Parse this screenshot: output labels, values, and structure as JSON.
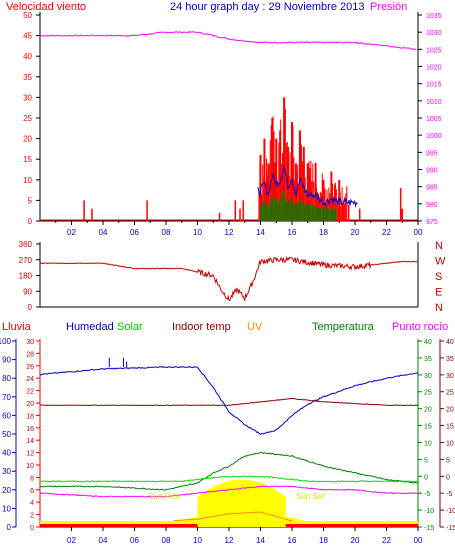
{
  "header": {
    "left_label": "Velocidad viento",
    "title": "24 hour graph day : 29 Noviembre 2013",
    "right_label": "Presión"
  },
  "bottom_header": {
    "rain": "Lluvia",
    "humidity": "Humedad",
    "solar": "Solar",
    "indoor": "Indoor temp",
    "uv": "UV",
    "temp": "Temperatura",
    "dew": "Punto rocío"
  },
  "annotations": {
    "sunrise": "Sun Rise",
    "sunset": "Sun Set"
  },
  "colors": {
    "wind": "#ff0000",
    "gust": "#0000cc",
    "avg": "#008000",
    "pressure": "#ff00ff",
    "direction": "#cc0000",
    "humidity": "#0000cc",
    "solar": "#00dd00",
    "indoor": "#880000",
    "uv": "#ff8800",
    "temperature": "#008000",
    "dew": "#ff00ff",
    "rain": "#ff0000",
    "sun": "#ffff00"
  },
  "chart_data": [
    {
      "type": "bar",
      "panel": "wind-pressure",
      "x_ticks": [
        "02",
        "04",
        "06",
        "08",
        "10",
        "12",
        "14",
        "16",
        "18",
        "20",
        "22",
        "00"
      ],
      "ylabel": "Velocidad viento",
      "y_ticks": [
        0,
        5,
        10,
        15,
        20,
        25,
        30,
        35,
        40,
        45,
        50
      ],
      "ylim": [
        0,
        50
      ],
      "y2label": "Presión",
      "y2_ticks": [
        975,
        980,
        985,
        990,
        995,
        1000,
        1005,
        1010,
        1015,
        1020,
        1025,
        1030,
        1035
      ],
      "y2lim": [
        975,
        1035
      ],
      "series": [
        {
          "name": "Velocidad viento",
          "x": [
            14.0,
            14.25,
            14.5,
            14.75,
            15.0,
            15.25,
            15.5,
            15.75,
            16.0,
            16.25,
            16.5,
            16.75,
            17.0,
            17.5,
            18.0,
            18.5,
            19.0
          ],
          "values": [
            16,
            20,
            14,
            25,
            20,
            22,
            30,
            18,
            24,
            14,
            22,
            18,
            14,
            14,
            10,
            12,
            10
          ]
        },
        {
          "name": "Presión",
          "x": [
            0,
            2,
            4,
            6,
            8,
            10,
            12,
            14,
            16,
            18,
            20,
            22,
            24
          ],
          "values": [
            1029,
            1029,
            1029,
            1029,
            1030,
            1030,
            1028,
            1027,
            1027,
            1027,
            1027,
            1026,
            1025
          ]
        }
      ],
      "grid": false,
      "legend": "top"
    },
    {
      "type": "line",
      "panel": "wind-direction",
      "y_ticks": [
        0,
        90,
        180,
        270,
        360
      ],
      "ylim": [
        0,
        360
      ],
      "right_labels": [
        "N",
        "W",
        "S",
        "E",
        "N"
      ],
      "series": [
        {
          "name": "direction",
          "x": [
            0,
            4,
            6,
            9,
            10,
            11,
            11.5,
            12,
            12.5,
            13,
            13.5,
            14,
            15,
            16,
            18,
            20,
            21,
            23
          ],
          "values": [
            250,
            250,
            220,
            220,
            200,
            180,
            100,
            40,
            100,
            50,
            140,
            260,
            270,
            270,
            240,
            230,
            240,
            260
          ]
        }
      ]
    },
    {
      "type": "line",
      "panel": "temperature-humidity",
      "x_ticks": [
        "02",
        "04",
        "06",
        "08",
        "10",
        "12",
        "14",
        "16",
        "18",
        "20",
        "22",
        "00"
      ],
      "humidity_ticks": [
        0,
        10,
        20,
        30,
        40,
        50,
        60,
        70,
        80,
        90,
        100
      ],
      "rain_ticks": [
        0,
        2,
        4,
        6,
        8,
        10,
        12,
        14,
        16,
        18,
        20,
        22,
        24,
        26,
        28,
        30
      ],
      "temp_ticks": [
        -15,
        -10,
        -5,
        0,
        5,
        10,
        15,
        20,
        25,
        30,
        35,
        40
      ],
      "dew_ticks": [
        -15,
        -10,
        -5,
        0,
        5,
        10,
        15,
        20,
        25,
        30,
        35,
        40
      ],
      "series": [
        {
          "name": "Humedad",
          "x": [
            0,
            4,
            8,
            10,
            11,
            12,
            13,
            14,
            15,
            16,
            17,
            18,
            20,
            22,
            24
          ],
          "values": [
            82,
            85,
            86,
            86,
            75,
            62,
            55,
            50,
            52,
            60,
            66,
            70,
            76,
            80,
            83
          ]
        },
        {
          "name": "Indoor temp",
          "x": [
            0,
            6,
            10,
            12,
            14,
            16,
            18,
            22,
            24
          ],
          "values": [
            21,
            21,
            21,
            21,
            22,
            23,
            22,
            21,
            21
          ]
        },
        {
          "name": "Temperatura",
          "x": [
            0,
            4,
            8,
            10,
            11,
            12,
            13,
            14,
            16,
            18,
            20,
            22,
            24
          ],
          "values": [
            -3,
            -3,
            -4,
            -2,
            1,
            3,
            6,
            7,
            6,
            3,
            1,
            -1,
            -2
          ]
        },
        {
          "name": "Punto rocío",
          "x": [
            0,
            4,
            8,
            10,
            12,
            14,
            16,
            18,
            20,
            22,
            24
          ],
          "values": [
            -5,
            -6,
            -6,
            -5,
            -4,
            -3,
            -3,
            -4,
            -4,
            -5,
            -5
          ]
        },
        {
          "name": "Solar",
          "x": [
            0,
            4,
            8,
            10,
            14,
            16,
            18,
            22,
            24
          ],
          "values": [
            0,
            0,
            0,
            60,
            150,
            40,
            0,
            0,
            0
          ]
        },
        {
          "name": "UV",
          "x": [
            0,
            8,
            10,
            12,
            14,
            16,
            24
          ],
          "values": [
            0,
            0,
            0.2,
            0.8,
            1.0,
            0,
            0
          ]
        }
      ],
      "sun_times": {
        "sunrise": 8.7,
        "sunset": 16.9
      }
    }
  ]
}
